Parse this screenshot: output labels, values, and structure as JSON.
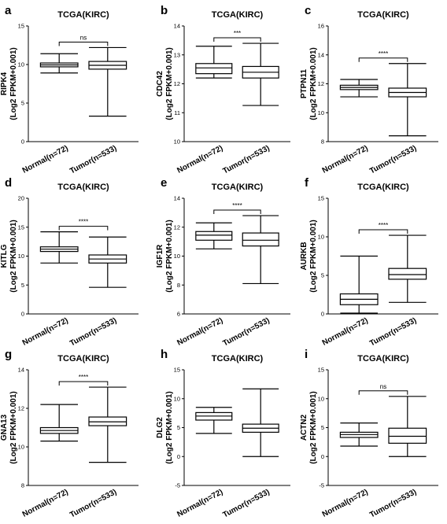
{
  "chart_data": [
    {
      "letter": "a",
      "type": "box",
      "title": "TCGA(KIRC)",
      "ylabel": [
        "RIPK4",
        "(Log2 FPKM+0.001)"
      ],
      "categories": [
        "Normal(n=72)",
        "Tumor(n=533)"
      ],
      "yticks": [
        0,
        5,
        10,
        15
      ],
      "ylim": [
        0,
        15
      ],
      "boxes": [
        {
          "min": 8.9,
          "q1": 9.7,
          "median": 9.95,
          "q3": 10.2,
          "max": 11.4
        },
        {
          "min": 3.3,
          "q1": 9.4,
          "median": 9.9,
          "q3": 10.4,
          "max": 12.2
        }
      ],
      "significance": "ns"
    },
    {
      "letter": "b",
      "type": "box",
      "title": "TCGA(KIRC)",
      "ylabel": [
        "CDC42",
        "(Log2 FPKM+0.001)"
      ],
      "categories": [
        "Normal(n=72)",
        "Tumor(n=533)"
      ],
      "yticks": [
        10,
        11,
        12,
        13,
        14
      ],
      "ylim": [
        10,
        14
      ],
      "boxes": [
        {
          "min": 12.2,
          "q1": 12.35,
          "median": 12.55,
          "q3": 12.7,
          "max": 13.3
        },
        {
          "min": 11.25,
          "q1": 12.2,
          "median": 12.4,
          "q3": 12.6,
          "max": 13.4
        }
      ],
      "significance": "***"
    },
    {
      "letter": "c",
      "type": "box",
      "title": "TCGA(KIRC)",
      "ylabel": [
        "PTPN11",
        "(Log2 FPKM+0.001)"
      ],
      "categories": [
        "Normal(n=72)",
        "Tumor(n=533)"
      ],
      "yticks": [
        8,
        10,
        12,
        14,
        16
      ],
      "ylim": [
        8,
        16
      ],
      "boxes": [
        {
          "min": 11.1,
          "q1": 11.6,
          "median": 11.75,
          "q3": 11.9,
          "max": 12.3
        },
        {
          "min": 8.4,
          "q1": 11.1,
          "median": 11.4,
          "q3": 11.7,
          "max": 13.4
        }
      ],
      "significance": "****"
    },
    {
      "letter": "d",
      "type": "box",
      "title": "TCGA(KIRC)",
      "ylabel": [
        "KITLG",
        "(Log2 FPKM+0.001)"
      ],
      "categories": [
        "Normal(n=72)",
        "Tumor(n=533)"
      ],
      "yticks": [
        0,
        5,
        10,
        15,
        20
      ],
      "ylim": [
        0,
        20
      ],
      "boxes": [
        {
          "min": 8.8,
          "q1": 10.8,
          "median": 11.2,
          "q3": 11.6,
          "max": 14.2
        },
        {
          "min": 4.6,
          "q1": 8.8,
          "median": 9.5,
          "q3": 10.2,
          "max": 13.3
        }
      ],
      "significance": "****"
    },
    {
      "letter": "e",
      "type": "box",
      "title": "TCGA(KIRC)",
      "ylabel": [
        "IGF1R",
        "(Log2 FPKM+0.001)"
      ],
      "categories": [
        "Normal(n=72)",
        "Tumor(n=533)"
      ],
      "yticks": [
        6,
        8,
        10,
        12,
        14
      ],
      "ylim": [
        6,
        14
      ],
      "boxes": [
        {
          "min": 10.5,
          "q1": 11.1,
          "median": 11.45,
          "q3": 11.7,
          "max": 12.3
        },
        {
          "min": 8.1,
          "q1": 10.7,
          "median": 11.1,
          "q3": 11.6,
          "max": 12.8
        }
      ],
      "significance": "****"
    },
    {
      "letter": "f",
      "type": "box",
      "title": "TCGA(KIRC)",
      "ylabel": [
        "AURKB",
        "(Log2 FPKM+0.001)"
      ],
      "categories": [
        "Normal(n=72)",
        "Tumor(n=533)"
      ],
      "yticks": [
        0,
        5,
        10,
        15
      ],
      "ylim": [
        0,
        15
      ],
      "boxes": [
        {
          "min": 0.1,
          "q1": 1.2,
          "median": 1.9,
          "q3": 2.6,
          "max": 7.5
        },
        {
          "min": 1.5,
          "q1": 4.5,
          "median": 5.1,
          "q3": 5.9,
          "max": 10.2
        }
      ],
      "significance": "****"
    },
    {
      "letter": "g",
      "type": "box",
      "title": "TCGA(KIRC)",
      "ylabel": [
        "GNA13",
        "(Log2 FPKM+0.001)"
      ],
      "categories": [
        "Normal(n=72)",
        "Tumor(n=533)"
      ],
      "yticks": [
        8,
        10,
        12,
        14
      ],
      "ylim": [
        8,
        14
      ],
      "boxes": [
        {
          "min": 10.3,
          "q1": 10.7,
          "median": 10.85,
          "q3": 11.0,
          "max": 12.2
        },
        {
          "min": 9.2,
          "q1": 11.1,
          "median": 11.3,
          "q3": 11.55,
          "max": 13.1
        }
      ],
      "significance": "****"
    },
    {
      "letter": "h",
      "type": "box",
      "title": "TCGA(KIRC)",
      "ylabel": [
        "DLG2",
        "(Log2 FPKM+0.001)"
      ],
      "categories": [
        "Normal(n=72)",
        "Tumor(n=533)"
      ],
      "yticks": [
        -5,
        0,
        5,
        10,
        15
      ],
      "ylim": [
        -5,
        15
      ],
      "boxes": [
        {
          "min": 4.0,
          "q1": 6.3,
          "median": 7.0,
          "q3": 7.6,
          "max": 8.5
        },
        {
          "min": 0.0,
          "q1": 4.2,
          "median": 4.9,
          "q3": 5.6,
          "max": 11.7
        }
      ],
      "significance": ""
    },
    {
      "letter": "i",
      "type": "box",
      "title": "TCGA(KIRC)",
      "ylabel": [
        "ACTN2",
        "(Log2 FPKM+0.001)"
      ],
      "categories": [
        "Normal(n=72)",
        "Tumor(n=533)"
      ],
      "yticks": [
        -5,
        0,
        5,
        10,
        15
      ],
      "ylim": [
        -5,
        15
      ],
      "boxes": [
        {
          "min": 1.8,
          "q1": 3.3,
          "median": 3.8,
          "q3": 4.2,
          "max": 5.8
        },
        {
          "min": 0.0,
          "q1": 2.3,
          "median": 3.5,
          "q3": 4.9,
          "max": 10.4
        }
      ],
      "significance": "ns"
    }
  ]
}
